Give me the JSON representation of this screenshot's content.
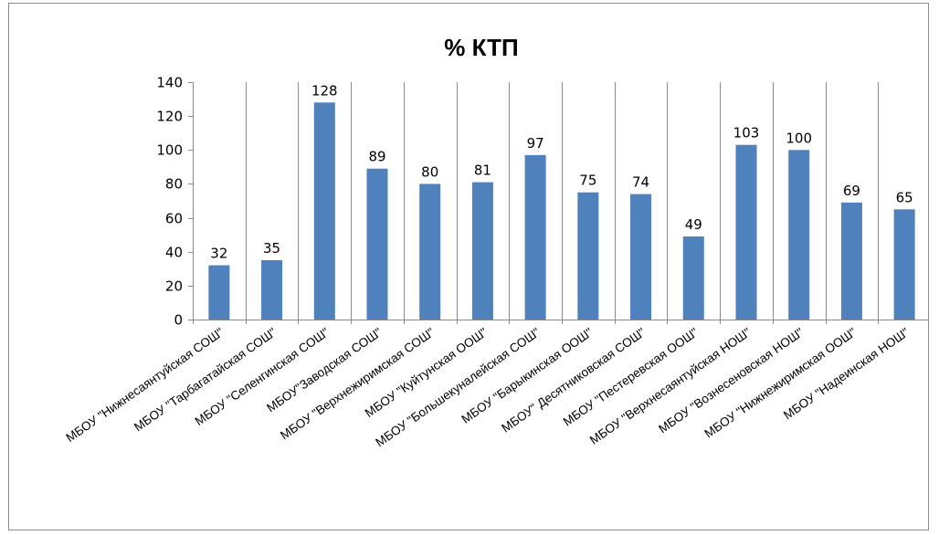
{
  "chart_data": {
    "type": "bar",
    "title": "% КТП",
    "categories": [
      "МБОУ \"Нижнесаянтуйская СОШ\"",
      "МБОУ \"Тарбагатайская СОШ\"",
      "МБОУ \"Селенгинская СОШ\"",
      "МБОУ\"Заводская СОШ\"",
      "МБОУ \"Верхнежиримская СОШ\"",
      "МБОУ \"Куйтунская ООШ\"",
      "МБОУ \"Большекуналейская СОШ\"",
      "МБОУ \"Барыкинская ООШ\"",
      "МБОУ\" Десятниковская СОШ\"",
      "МБОУ \"Пестеревская ООШ\"",
      "МБОУ \"Верхнесаянтуйская НОШ\"",
      "МБОУ \"Вознесеновская НОШ\"",
      "МБОУ \"Нижнежиримская ООШ\"",
      "МБОУ \"Надеинская НОШ\""
    ],
    "values": [
      32,
      35,
      128,
      89,
      80,
      81,
      97,
      75,
      74,
      49,
      103,
      100,
      69,
      65
    ],
    "yticks": [
      0,
      20,
      40,
      60,
      80,
      100,
      120,
      140
    ],
    "ylim": [
      0,
      140
    ],
    "xlabel": "",
    "ylabel": "",
    "grid": "vertical",
    "legend": "none",
    "bar_color": "#4F81BD"
  }
}
